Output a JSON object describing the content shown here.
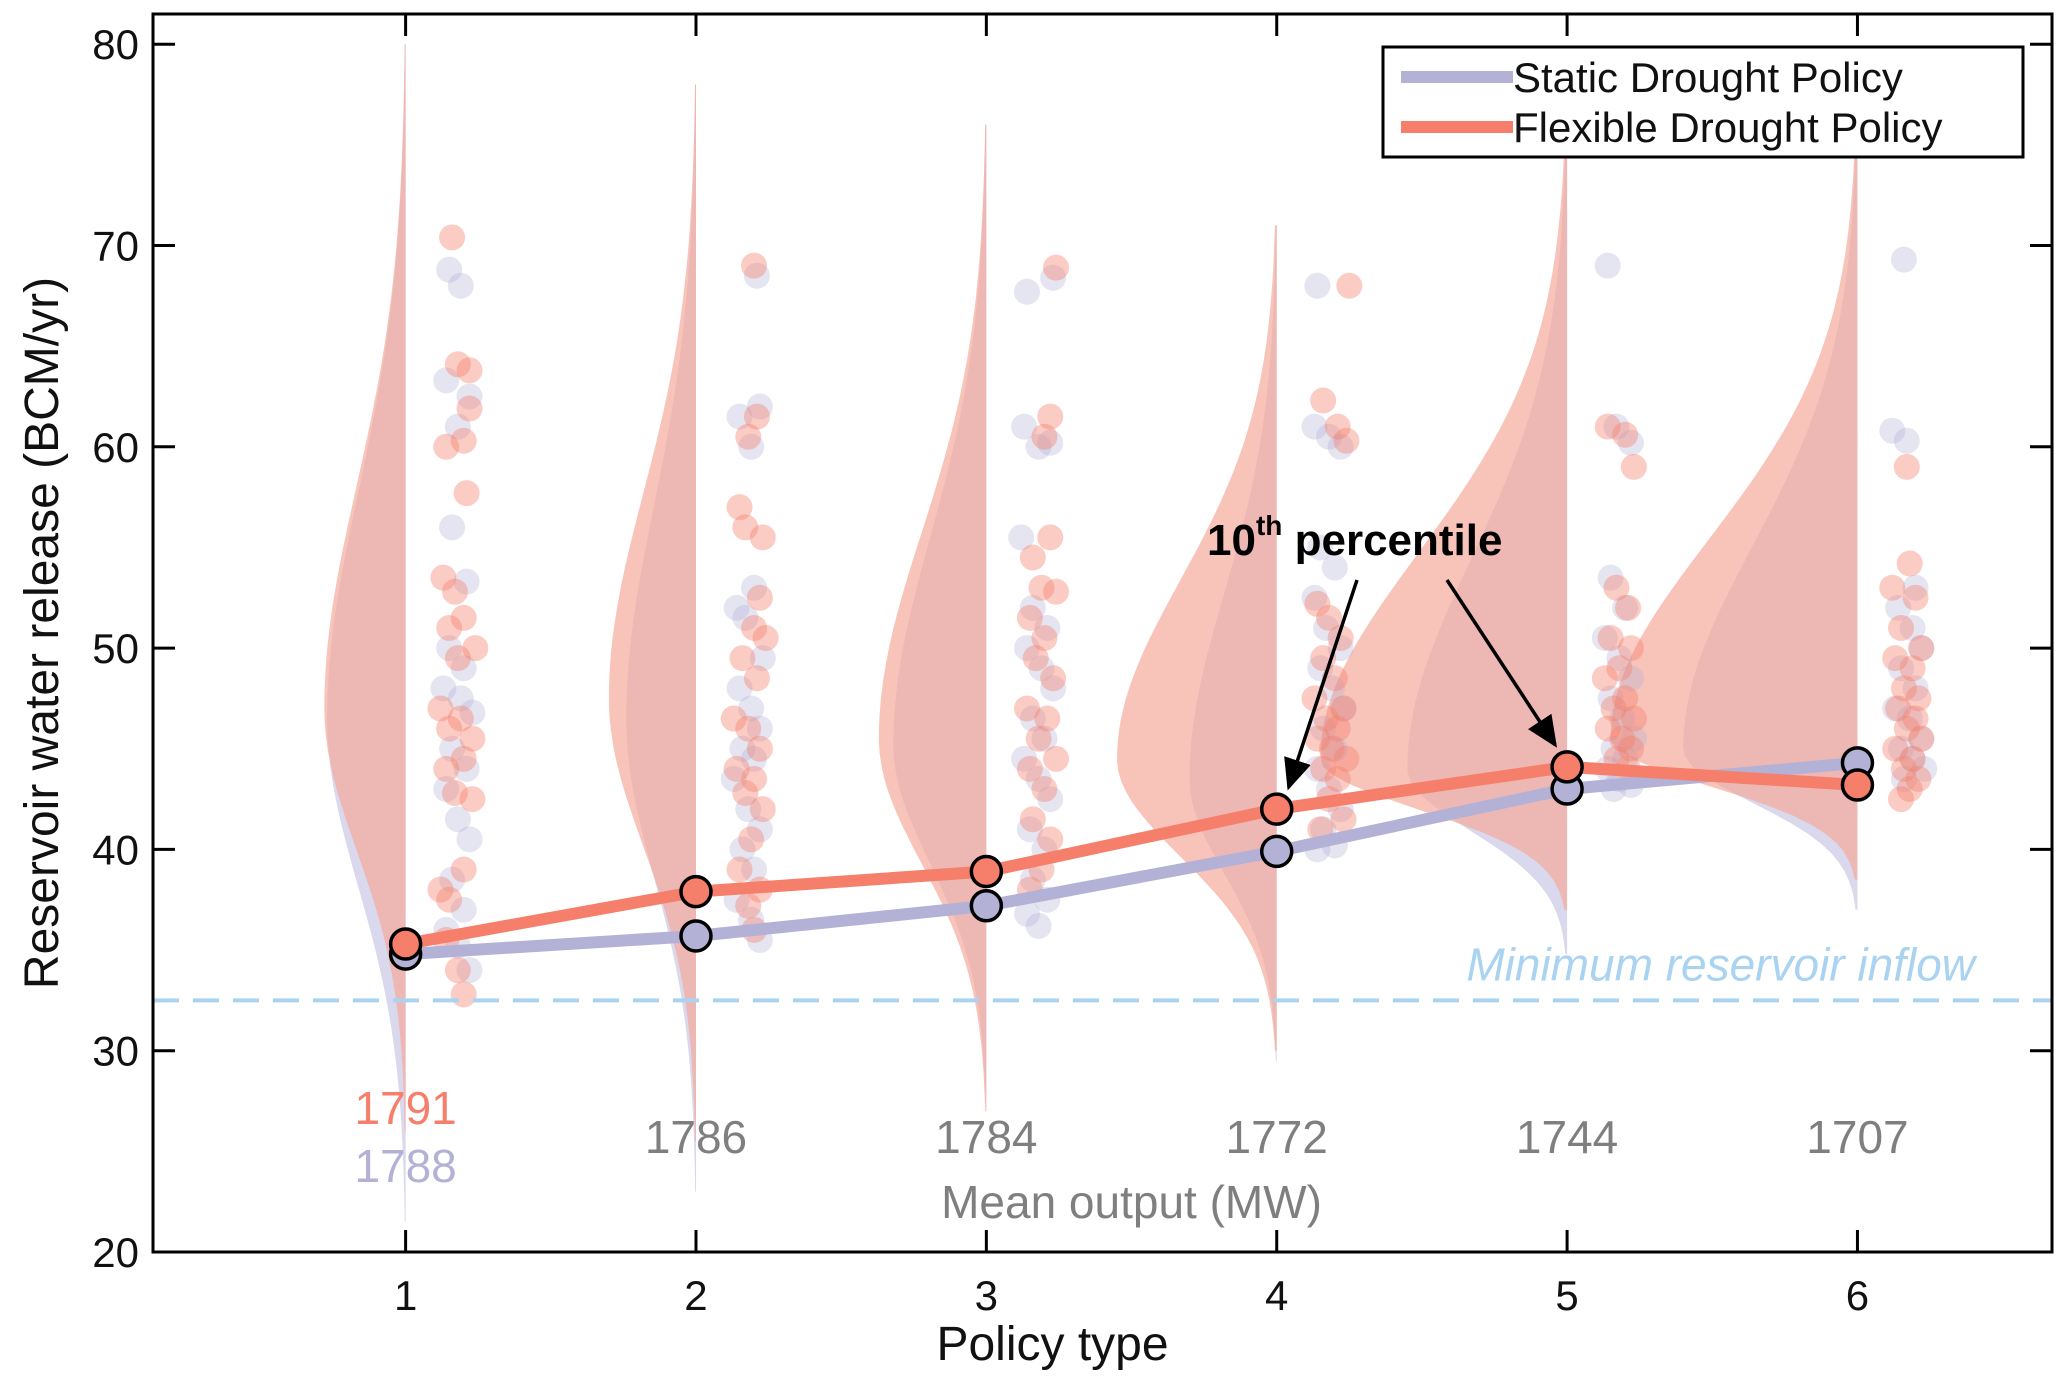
{
  "colors": {
    "static": "#b4b1d6",
    "flexible": "#f57f6b",
    "static_violin": "#c9c8e4",
    "flexible_violin": "#f5a99b",
    "min_inflow": "#a9d3f0",
    "mean_text_gray": "#7f7f7f",
    "axis": "#000000"
  },
  "chart_data": {
    "type": "line",
    "xlabel": "Policy type",
    "ylabel": "Reservoir water release (BCM/yr)",
    "xlim": [
      0.13,
      6.67
    ],
    "ylim": [
      20,
      81.5
    ],
    "x": [
      1,
      2,
      3,
      4,
      5,
      6
    ],
    "x_tick_labels": [
      "1",
      "2",
      "3",
      "4",
      "5",
      "6"
    ],
    "y_ticks": [
      20,
      30,
      40,
      50,
      60,
      70,
      80
    ],
    "y_tick_labels": [
      "20",
      "30",
      "40",
      "50",
      "60",
      "70",
      "80"
    ],
    "grid": false,
    "legend_position": "top-right",
    "series": [
      {
        "name": "Static Drought Policy",
        "values": [
          34.8,
          35.7,
          37.2,
          39.9,
          43.0,
          44.3
        ]
      },
      {
        "name": "Flexible Drought Policy",
        "values": [
          35.3,
          37.9,
          38.9,
          42.0,
          44.1,
          43.2
        ]
      }
    ],
    "violins": [
      {
        "x": 1,
        "top": 80,
        "flex": {
          "bottom": 26,
          "mode": 47,
          "width": 0.28
        },
        "static": {
          "bottom": 21.5,
          "mode": 46.5,
          "width": 0.27
        }
      },
      {
        "x": 2,
        "top": 78,
        "flex": {
          "bottom": 25.5,
          "mode": 47.5,
          "width": 0.3
        },
        "static": {
          "bottom": 23,
          "mode": 46.5,
          "width": 0.24
        }
      },
      {
        "x": 3,
        "top": 76,
        "flex": {
          "bottom": 27,
          "mode": 45.5,
          "width": 0.37
        },
        "static": {
          "bottom": 27.5,
          "mode": 45.2,
          "width": 0.32
        }
      },
      {
        "x": 4,
        "top": 71,
        "flex": {
          "bottom": 30,
          "mode": 44.5,
          "width": 0.55
        },
        "static": {
          "bottom": 29.5,
          "mode": 43.5,
          "width": 0.3
        }
      },
      {
        "x": 5,
        "top": 75,
        "flex": {
          "bottom": 37,
          "mode": 44.5,
          "width": 0.85
        },
        "static": {
          "bottom": 34.8,
          "mode": 44.0,
          "width": 0.55
        }
      },
      {
        "x": 6,
        "top": 75,
        "flex": {
          "bottom": 38.5,
          "mode": 45.5,
          "width": 0.85
        },
        "static": {
          "bottom": 37,
          "mode": 45.0,
          "width": 0.6
        }
      }
    ],
    "scatter_flexible": [
      [
        [
          1.16,
          70.4
        ],
        [
          1.18,
          64.1
        ],
        [
          1.22,
          63.8
        ],
        [
          1.22,
          61.9
        ],
        [
          1.14,
          60.0
        ],
        [
          1.2,
          60.3
        ],
        [
          1.21,
          57.7
        ],
        [
          1.13,
          53.5
        ],
        [
          1.17,
          52.8
        ],
        [
          1.2,
          51.5
        ],
        [
          1.15,
          51.0
        ],
        [
          1.24,
          50.0
        ],
        [
          1.18,
          49.5
        ],
        [
          1.12,
          47.0
        ],
        [
          1.19,
          46.5
        ],
        [
          1.15,
          46.0
        ],
        [
          1.23,
          45.5
        ],
        [
          1.14,
          44.0
        ],
        [
          1.2,
          44.5
        ],
        [
          1.17,
          42.8
        ],
        [
          1.23,
          42.5
        ],
        [
          1.12,
          38.0
        ],
        [
          1.2,
          39.0
        ],
        [
          1.15,
          37.5
        ],
        [
          1.18,
          34.0
        ],
        [
          1.2,
          32.8
        ],
        [
          1.14,
          35.5
        ]
      ],
      [
        [
          2.2,
          69.0
        ],
        [
          2.21,
          61.5
        ],
        [
          2.18,
          60.5
        ],
        [
          2.15,
          57.0
        ],
        [
          2.17,
          56.0
        ],
        [
          2.23,
          55.5
        ],
        [
          2.22,
          52.5
        ],
        [
          2.2,
          51.0
        ],
        [
          2.24,
          50.5
        ],
        [
          2.16,
          49.5
        ],
        [
          2.21,
          48.5
        ],
        [
          2.13,
          46.5
        ],
        [
          2.18,
          46.0
        ],
        [
          2.22,
          45.0
        ],
        [
          2.14,
          44.0
        ],
        [
          2.2,
          43.5
        ],
        [
          2.17,
          42.8
        ],
        [
          2.23,
          42.0
        ],
        [
          2.19,
          40.5
        ],
        [
          2.15,
          39.0
        ],
        [
          2.22,
          38.0
        ],
        [
          2.18,
          37.2
        ],
        [
          2.2,
          36.0
        ]
      ],
      [
        [
          3.24,
          68.9
        ],
        [
          3.22,
          61.5
        ],
        [
          3.2,
          60.5
        ],
        [
          3.16,
          54.5
        ],
        [
          3.22,
          55.5
        ],
        [
          3.19,
          53.0
        ],
        [
          3.24,
          52.8
        ],
        [
          3.15,
          51.5
        ],
        [
          3.2,
          50.5
        ],
        [
          3.17,
          49.5
        ],
        [
          3.23,
          48.5
        ],
        [
          3.14,
          47.0
        ],
        [
          3.21,
          46.5
        ],
        [
          3.18,
          45.5
        ],
        [
          3.24,
          44.5
        ],
        [
          3.15,
          44.0
        ],
        [
          3.2,
          43.0
        ],
        [
          3.16,
          41.5
        ],
        [
          3.22,
          40.5
        ],
        [
          3.19,
          39.0
        ],
        [
          3.15,
          38.0
        ]
      ],
      [
        [
          4.25,
          68.0
        ],
        [
          4.16,
          62.3
        ],
        [
          4.21,
          61.0
        ],
        [
          4.24,
          60.3
        ],
        [
          4.14,
          52.2
        ],
        [
          4.18,
          51.5
        ],
        [
          4.22,
          50.5
        ],
        [
          4.16,
          49.5
        ],
        [
          4.2,
          48.5
        ],
        [
          4.13,
          47.5
        ],
        [
          4.23,
          47.0
        ],
        [
          4.17,
          46.5
        ],
        [
          4.21,
          46.0
        ],
        [
          4.14,
          45.5
        ],
        [
          4.19,
          45.0
        ],
        [
          4.24,
          44.5
        ],
        [
          4.16,
          44.0
        ],
        [
          4.21,
          43.5
        ],
        [
          4.18,
          42.5
        ],
        [
          4.23,
          41.5
        ],
        [
          4.15,
          41.0
        ]
      ],
      [
        [
          5.2,
          60.6
        ],
        [
          5.14,
          61.0
        ],
        [
          5.23,
          59.0
        ],
        [
          5.17,
          53.0
        ],
        [
          5.21,
          52.0
        ],
        [
          5.15,
          50.5
        ],
        [
          5.22,
          50.0
        ],
        [
          5.18,
          49.0
        ],
        [
          5.13,
          48.5
        ],
        [
          5.2,
          47.5
        ],
        [
          5.16,
          47.0
        ],
        [
          5.23,
          46.5
        ],
        [
          5.14,
          46.0
        ],
        [
          5.19,
          45.5
        ],
        [
          5.22,
          45.0
        ],
        [
          5.17,
          44.5
        ],
        [
          5.21,
          44.0
        ]
      ],
      [
        [
          6.17,
          59.0
        ],
        [
          6.18,
          54.2
        ],
        [
          6.12,
          53.0
        ],
        [
          6.2,
          52.5
        ],
        [
          6.15,
          51.0
        ],
        [
          6.22,
          50.0
        ],
        [
          6.13,
          49.5
        ],
        [
          6.19,
          49.0
        ],
        [
          6.16,
          48.0
        ],
        [
          6.21,
          47.5
        ],
        [
          6.14,
          47.0
        ],
        [
          6.2,
          46.5
        ],
        [
          6.17,
          46.0
        ],
        [
          6.22,
          45.5
        ],
        [
          6.13,
          45.0
        ],
        [
          6.19,
          44.5
        ],
        [
          6.16,
          44.0
        ],
        [
          6.21,
          43.5
        ],
        [
          6.18,
          43.0
        ],
        [
          6.15,
          42.5
        ]
      ]
    ],
    "scatter_static": [
      [
        [
          1.15,
          68.8
        ],
        [
          1.19,
          68.0
        ],
        [
          1.14,
          63.3
        ],
        [
          1.22,
          62.5
        ],
        [
          1.18,
          61.0
        ],
        [
          1.16,
          56.0
        ],
        [
          1.21,
          53.3
        ],
        [
          1.15,
          50.0
        ],
        [
          1.2,
          49.0
        ],
        [
          1.13,
          48.0
        ],
        [
          1.19,
          47.5
        ],
        [
          1.23,
          46.8
        ],
        [
          1.16,
          45.0
        ],
        [
          1.21,
          44.0
        ],
        [
          1.14,
          43.0
        ],
        [
          1.18,
          41.5
        ],
        [
          1.22,
          40.5
        ],
        [
          1.16,
          38.5
        ],
        [
          1.2,
          37.0
        ],
        [
          1.14,
          36.0
        ],
        [
          1.18,
          35.2
        ],
        [
          1.22,
          34.0
        ]
      ],
      [
        [
          2.21,
          68.5
        ],
        [
          2.15,
          61.5
        ],
        [
          2.19,
          60.0
        ],
        [
          2.22,
          62.0
        ],
        [
          2.14,
          52.0
        ],
        [
          2.2,
          53.0
        ],
        [
          2.17,
          51.5
        ],
        [
          2.23,
          49.5
        ],
        [
          2.15,
          48.0
        ],
        [
          2.19,
          47.0
        ],
        [
          2.22,
          46.0
        ],
        [
          2.16,
          45.0
        ],
        [
          2.2,
          44.5
        ],
        [
          2.13,
          43.5
        ],
        [
          2.18,
          42.0
        ],
        [
          2.22,
          41.0
        ],
        [
          2.16,
          40.0
        ],
        [
          2.2,
          39.0
        ],
        [
          2.14,
          37.5
        ],
        [
          2.19,
          36.5
        ],
        [
          2.22,
          35.5
        ]
      ],
      [
        [
          3.14,
          67.7
        ],
        [
          3.23,
          68.4
        ],
        [
          3.13,
          61.0
        ],
        [
          3.18,
          60.0
        ],
        [
          3.22,
          60.2
        ],
        [
          3.12,
          55.5
        ],
        [
          3.16,
          52.0
        ],
        [
          3.21,
          51.0
        ],
        [
          3.14,
          50.0
        ],
        [
          3.19,
          49.0
        ],
        [
          3.23,
          48.0
        ],
        [
          3.16,
          46.5
        ],
        [
          3.2,
          45.5
        ],
        [
          3.13,
          44.5
        ],
        [
          3.18,
          43.5
        ],
        [
          3.22,
          42.5
        ],
        [
          3.15,
          41.0
        ],
        [
          3.2,
          40.0
        ],
        [
          3.16,
          38.5
        ],
        [
          3.21,
          37.5
        ],
        [
          3.14,
          36.8
        ],
        [
          3.18,
          36.2
        ]
      ],
      [
        [
          4.14,
          68.0
        ],
        [
          4.13,
          61.0
        ],
        [
          4.18,
          60.5
        ],
        [
          4.22,
          60.0
        ],
        [
          4.15,
          55.0
        ],
        [
          4.2,
          54.0
        ],
        [
          4.13,
          52.5
        ],
        [
          4.17,
          51.0
        ],
        [
          4.22,
          50.0
        ],
        [
          4.15,
          49.0
        ],
        [
          4.19,
          48.0
        ],
        [
          4.23,
          47.0
        ],
        [
          4.16,
          46.0
        ],
        [
          4.2,
          45.0
        ],
        [
          4.14,
          44.0
        ],
        [
          4.18,
          43.0
        ],
        [
          4.22,
          42.0
        ],
        [
          4.16,
          41.0
        ],
        [
          4.2,
          40.2
        ],
        [
          4.14,
          40.0
        ]
      ],
      [
        [
          5.14,
          69.0
        ],
        [
          5.17,
          61.0
        ],
        [
          5.22,
          60.2
        ],
        [
          5.15,
          53.5
        ],
        [
          5.2,
          52.0
        ],
        [
          5.13,
          50.5
        ],
        [
          5.18,
          49.5
        ],
        [
          5.22,
          48.5
        ],
        [
          5.15,
          47.5
        ],
        [
          5.19,
          46.5
        ],
        [
          5.23,
          45.5
        ],
        [
          5.16,
          45.0
        ],
        [
          5.2,
          44.5
        ],
        [
          5.14,
          44.0
        ],
        [
          5.18,
          43.5
        ],
        [
          5.22,
          43.2
        ],
        [
          5.16,
          43.0
        ]
      ],
      [
        [
          6.16,
          69.3
        ],
        [
          6.12,
          60.8
        ],
        [
          6.17,
          60.3
        ],
        [
          6.2,
          53.0
        ],
        [
          6.14,
          52.0
        ],
        [
          6.19,
          51.0
        ],
        [
          6.22,
          50.0
        ],
        [
          6.15,
          49.0
        ],
        [
          6.2,
          48.0
        ],
        [
          6.13,
          47.0
        ],
        [
          6.18,
          46.5
        ],
        [
          6.22,
          45.5
        ],
        [
          6.15,
          45.0
        ],
        [
          6.19,
          44.5
        ],
        [
          6.23,
          44.0
        ],
        [
          6.16,
          43.5
        ]
      ]
    ],
    "mean_output_labels": [
      "1786",
      "1784",
      "1772",
      "1744",
      "1707"
    ],
    "mean_output_x": [
      2,
      3,
      4,
      5,
      6
    ],
    "policy1_flexible_label": "1791",
    "policy1_static_label": "1788",
    "mean_output_title": "Mean output (MW)",
    "min_inflow": {
      "y": 32.5,
      "label": "Minimum reservoir inflow"
    },
    "annotation": {
      "prefix": "10",
      "sup": "th",
      "suffix": " percentile",
      "targets": [
        [
          4,
          42.0
        ],
        [
          5,
          44.1
        ]
      ]
    }
  }
}
